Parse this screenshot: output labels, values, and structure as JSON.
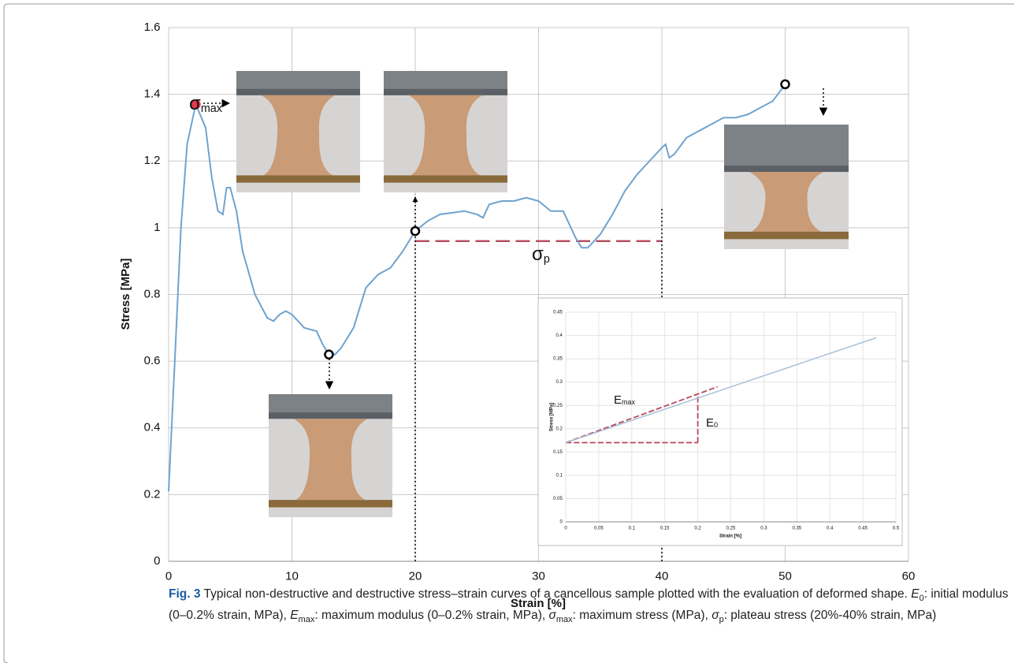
{
  "chart_data": [
    {
      "type": "line",
      "xlabel": "Strain [%]",
      "ylabel": "Stress [MPa]",
      "color": "#6fa3cf",
      "grid": true,
      "x": [
        0,
        0.5,
        1,
        1.5,
        2.2,
        3,
        3.5,
        4,
        4.4,
        4.7,
        5,
        5.5,
        6,
        7,
        8,
        8.5,
        9,
        9.5,
        10,
        11,
        12,
        12.5,
        13,
        13.5,
        14,
        15,
        16,
        17,
        18,
        19,
        20,
        21,
        22,
        24,
        25,
        25.5,
        26,
        27,
        28,
        29,
        30,
        31,
        32,
        33,
        33.5,
        34,
        35,
        36,
        37,
        38,
        39,
        40,
        40.3,
        40.6,
        41,
        42,
        43,
        44,
        45,
        46,
        47,
        48,
        49,
        50
      ],
      "values": [
        0.21,
        0.6,
        1.0,
        1.25,
        1.37,
        1.3,
        1.15,
        1.05,
        1.04,
        1.12,
        1.12,
        1.05,
        0.93,
        0.8,
        0.73,
        0.72,
        0.74,
        0.75,
        0.74,
        0.7,
        0.69,
        0.65,
        0.62,
        0.62,
        0.64,
        0.7,
        0.82,
        0.86,
        0.88,
        0.93,
        0.99,
        1.02,
        1.04,
        1.05,
        1.04,
        1.03,
        1.07,
        1.08,
        1.08,
        1.09,
        1.08,
        1.05,
        1.05,
        0.97,
        0.94,
        0.94,
        0.98,
        1.04,
        1.11,
        1.16,
        1.2,
        1.24,
        1.25,
        1.21,
        1.22,
        1.27,
        1.29,
        1.31,
        1.33,
        1.33,
        1.34,
        1.36,
        1.38,
        1.43
      ],
      "xlim": [
        0,
        60
      ],
      "xticks": [
        0,
        10,
        20,
        30,
        40,
        50,
        60
      ],
      "ylim": [
        0,
        1.6
      ],
      "yticks": [
        0,
        0.2,
        0.4,
        0.6,
        0.8,
        1,
        1.2,
        1.4,
        1.6
      ],
      "markers": [
        {
          "x": 2.2,
          "y": 1.37,
          "color": "#e8384f"
        },
        {
          "x": 13,
          "y": 0.62,
          "color": "#ffffff"
        },
        {
          "x": 20,
          "y": 0.99,
          "color": "#ffffff"
        },
        {
          "x": 50,
          "y": 1.43,
          "color": "#ffffff"
        }
      ],
      "lines": [
        {
          "x": [
            20,
            40
          ],
          "y": [
            0.96,
            0.96
          ],
          "style": "dashed",
          "color": "#b5495b"
        },
        {
          "x": [
            20,
            20
          ],
          "y": [
            0,
            1.1
          ],
          "style": "dotted",
          "color": "#000000"
        },
        {
          "x": [
            40,
            40
          ],
          "y": [
            0,
            1.06
          ],
          "style": "dotted",
          "color": "#000000"
        }
      ],
      "annotations": [
        {
          "text": "σ",
          "sub": "max"
        },
        {
          "text": "σ",
          "sub": "p"
        }
      ]
    },
    {
      "type": "line",
      "xlabel": "Strain [%]",
      "ylabel": "Stress [MPa]",
      "color": "#a9c0d8",
      "grid": true,
      "x": [
        0,
        0.47
      ],
      "values": [
        0.17,
        0.395
      ],
      "xlim": [
        0,
        0.5
      ],
      "xticks": [
        0,
        0.05,
        0.1,
        0.15,
        0.2,
        0.25,
        0.3,
        0.35,
        0.4,
        0.45,
        0.5
      ],
      "ylim": [
        0,
        0.45
      ],
      "yticks": [
        0,
        0.05,
        0.1,
        0.15,
        0.2,
        0.25,
        0.3,
        0.35,
        0.4,
        0.45
      ],
      "markers": [],
      "lines": [
        {
          "x": [
            0,
            0.23
          ],
          "y": [
            0.17,
            0.29
          ],
          "style": "dashed",
          "color": "#b5495b"
        },
        {
          "x": [
            0,
            0.2
          ],
          "y": [
            0.17,
            0.17
          ],
          "style": "dashed",
          "color": "#b5495b"
        },
        {
          "x": [
            0.2,
            0.2
          ],
          "y": [
            0.17,
            0.27
          ],
          "style": "dashed",
          "color": "#b5495b"
        }
      ],
      "annotations": [
        {
          "text": "E",
          "sub": "max"
        },
        {
          "text": "E",
          "sub": "0"
        }
      ]
    }
  ],
  "caption": {
    "label": "Fig. 3",
    "parts": [
      {
        "t": " Typical non-destructive and destructive stress–strain curves of a cancellous sample plotted with the evaluation of deformed shape. "
      },
      {
        "i": "E"
      },
      {
        "sub": "0"
      },
      {
        "t": ": initial modulus (0–0.2% strain, MPa), "
      },
      {
        "i": "E"
      },
      {
        "sub": "max"
      },
      {
        "t": ": maximum modulus (0–0.2% strain, MPa), "
      },
      {
        "i": "σ"
      },
      {
        "sub": "max"
      },
      {
        "t": ": maximum stress (MPa), "
      },
      {
        "i": "σ"
      },
      {
        "sub": "p"
      },
      {
        "t": ": plateau stress (20%-40% strain, MPa)"
      }
    ]
  }
}
